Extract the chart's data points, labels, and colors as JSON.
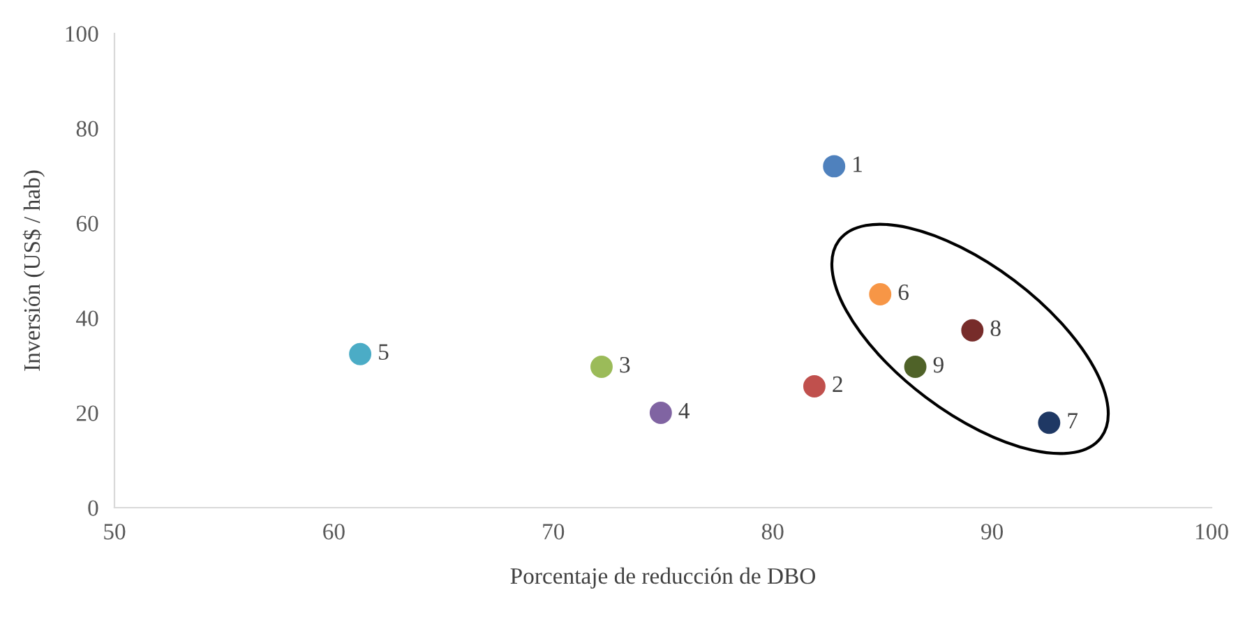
{
  "chart_data": {
    "type": "scatter",
    "xlabel": "Porcentaje de reducción de DBO",
    "ylabel": "Inversión (US$ / hab)",
    "x": [
      82.8,
      81.9,
      72.2,
      74.9,
      61.2,
      84.9,
      92.6,
      89.1,
      86.5
    ],
    "values": [
      72,
      25.6,
      29.7,
      20,
      32.4,
      45,
      17.9,
      37.4,
      29.7
    ],
    "colors": [
      "#4f81bd",
      "#c0504d",
      "#9bbb59",
      "#8064a2",
      "#4bacc6",
      "#f79646",
      "#1f3864",
      "#772c2a",
      "#4f6228"
    ],
    "xlim": [
      50,
      100
    ],
    "xticks": [
      50,
      60,
      70,
      80,
      90,
      100
    ],
    "ylim": [
      0,
      100
    ],
    "yticks": [
      0,
      20,
      40,
      60,
      80,
      100
    ],
    "grid": false,
    "legend": false,
    "marker": "circle",
    "annotations": [
      {
        "text": "1",
        "x": 82.8,
        "y": 72
      },
      {
        "text": "2",
        "x": 81.9,
        "y": 25.6
      },
      {
        "text": "3",
        "x": 72.2,
        "y": 29.7
      },
      {
        "text": "4",
        "x": 74.9,
        "y": 20
      },
      {
        "text": "5",
        "x": 61.2,
        "y": 32.4
      },
      {
        "text": "6",
        "x": 84.9,
        "y": 45
      },
      {
        "text": "7",
        "x": 92.6,
        "y": 17.9
      },
      {
        "text": "8",
        "x": 89.1,
        "y": 37.4
      },
      {
        "text": "9",
        "x": 86.5,
        "y": 29.7
      }
    ]
  }
}
